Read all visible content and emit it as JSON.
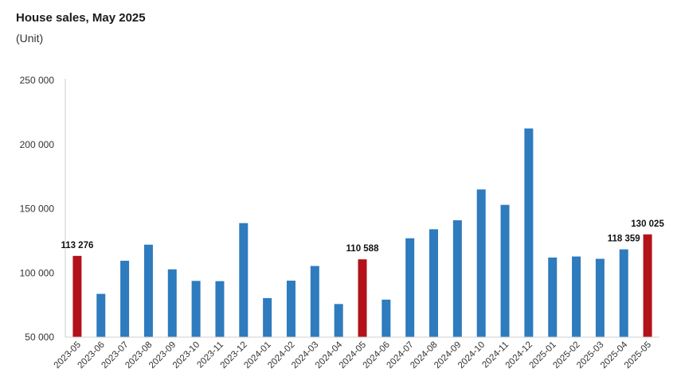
{
  "title": "House sales, May 2025",
  "subtitle": "(Unit)",
  "colors": {
    "normal": "#2E7BBE",
    "highlight": "#B3121B",
    "axis": "#cfcfcf"
  },
  "chart_data": {
    "type": "bar",
    "title": "House sales, May 2025",
    "ylabel": "(Unit)",
    "ylim": [
      50000,
      250000
    ],
    "yticks": [
      50000,
      100000,
      150000,
      200000,
      250000
    ],
    "ytick_labels": [
      "50 000",
      "100 000",
      "150 000",
      "200 000",
      "250 000"
    ],
    "grid": false,
    "categories": [
      "2023-05",
      "2023-06",
      "2023-07",
      "2023-08",
      "2023-09",
      "2023-10",
      "2023-11",
      "2023-12",
      "2024-01",
      "2024-02",
      "2024-03",
      "2024-04",
      "2024-05",
      "2024-06",
      "2024-07",
      "2024-08",
      "2024-09",
      "2024-10",
      "2024-11",
      "2024-12",
      "2025-01",
      "2025-02",
      "2025-03",
      "2025-04",
      "2025-05"
    ],
    "values": [
      113276,
      83700,
      109500,
      122000,
      102800,
      93800,
      93600,
      138800,
      80400,
      94000,
      105400,
      75800,
      110588,
      79200,
      127000,
      134000,
      141000,
      165000,
      153000,
      212500,
      112000,
      112800,
      111000,
      118359,
      130025
    ],
    "highlighted": [
      0,
      12,
      24
    ],
    "data_labels": [
      {
        "index": 0,
        "text": "113 276"
      },
      {
        "index": 12,
        "text": "110 588"
      },
      {
        "index": 23,
        "text": "118 359"
      },
      {
        "index": 24,
        "text": "130 025"
      }
    ]
  }
}
